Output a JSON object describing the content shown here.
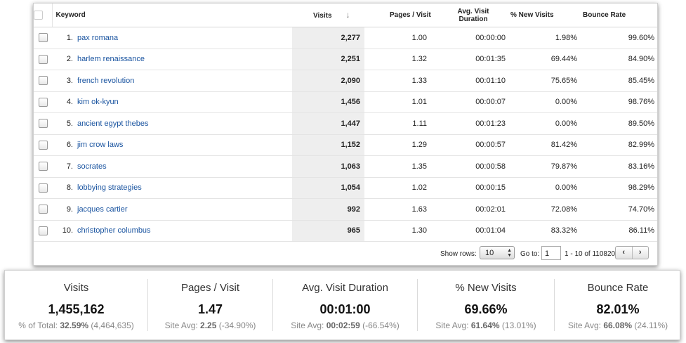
{
  "table": {
    "headers": {
      "keyword": "Keyword",
      "visits": "Visits",
      "pages_visit": "Pages / Visit",
      "avg_duration": "Avg. Visit Duration",
      "new_visits": "% New Visits",
      "bounce_rate": "Bounce Rate"
    },
    "sort_icon": "sort-descending-arrow",
    "rows": [
      {
        "num": "1.",
        "keyword": "pax romana",
        "visits": "2,277",
        "pages": "1.00",
        "duration": "00:00:00",
        "new": "1.98%",
        "bounce": "99.60%"
      },
      {
        "num": "2.",
        "keyword": "harlem renaissance",
        "visits": "2,251",
        "pages": "1.32",
        "duration": "00:01:35",
        "new": "69.44%",
        "bounce": "84.90%"
      },
      {
        "num": "3.",
        "keyword": "french revolution",
        "visits": "2,090",
        "pages": "1.33",
        "duration": "00:01:10",
        "new": "75.65%",
        "bounce": "85.45%"
      },
      {
        "num": "4.",
        "keyword": "kim ok-kyun",
        "visits": "1,456",
        "pages": "1.01",
        "duration": "00:00:07",
        "new": "0.00%",
        "bounce": "98.76%"
      },
      {
        "num": "5.",
        "keyword": "ancient egypt thebes",
        "visits": "1,447",
        "pages": "1.11",
        "duration": "00:01:23",
        "new": "0.00%",
        "bounce": "89.50%"
      },
      {
        "num": "6.",
        "keyword": "jim crow laws",
        "visits": "1,152",
        "pages": "1.29",
        "duration": "00:00:57",
        "new": "81.42%",
        "bounce": "82.99%"
      },
      {
        "num": "7.",
        "keyword": "socrates",
        "visits": "1,063",
        "pages": "1.35",
        "duration": "00:00:58",
        "new": "79.87%",
        "bounce": "83.16%"
      },
      {
        "num": "8.",
        "keyword": "lobbying strategies",
        "visits": "1,054",
        "pages": "1.02",
        "duration": "00:00:15",
        "new": "0.00%",
        "bounce": "98.29%"
      },
      {
        "num": "9.",
        "keyword": "jacques cartier",
        "visits": "992",
        "pages": "1.63",
        "duration": "00:02:01",
        "new": "72.08%",
        "bounce": "74.70%"
      },
      {
        "num": "10.",
        "keyword": "christopher columbus",
        "visits": "965",
        "pages": "1.30",
        "duration": "00:01:04",
        "new": "83.32%",
        "bounce": "86.11%"
      }
    ],
    "footer": {
      "show_rows_label": "Show rows:",
      "show_rows_value": "10",
      "goto_label": "Go to:",
      "goto_value": "1",
      "range_text": "1 - 10 of 110820",
      "prev": "‹",
      "next": "›"
    }
  },
  "summary": [
    {
      "name": "Visits",
      "value": "1,455,162",
      "sub_prefix": "% of Total: ",
      "sub_bold": "32.59%",
      "sub_suffix": " (4,464,635)"
    },
    {
      "name": "Pages / Visit",
      "value": "1.47",
      "sub_prefix": "Site Avg: ",
      "sub_bold": "2.25",
      "sub_suffix": " (-34.90%)"
    },
    {
      "name": "Avg. Visit Duration",
      "value": "00:01:00",
      "sub_prefix": "Site Avg: ",
      "sub_bold": "00:02:59",
      "sub_suffix": " (-66.54%)"
    },
    {
      "name": "% New Visits",
      "value": "69.66%",
      "sub_prefix": "Site Avg: ",
      "sub_bold": "61.64%",
      "sub_suffix": " (13.01%)"
    },
    {
      "name": "Bounce Rate",
      "value": "82.01%",
      "sub_prefix": "Site Avg: ",
      "sub_bold": "66.08%",
      "sub_suffix": " (24.11%)"
    }
  ],
  "colors": {
    "link": "#1a54a0",
    "visits_column_bg": "#eeeeee"
  }
}
